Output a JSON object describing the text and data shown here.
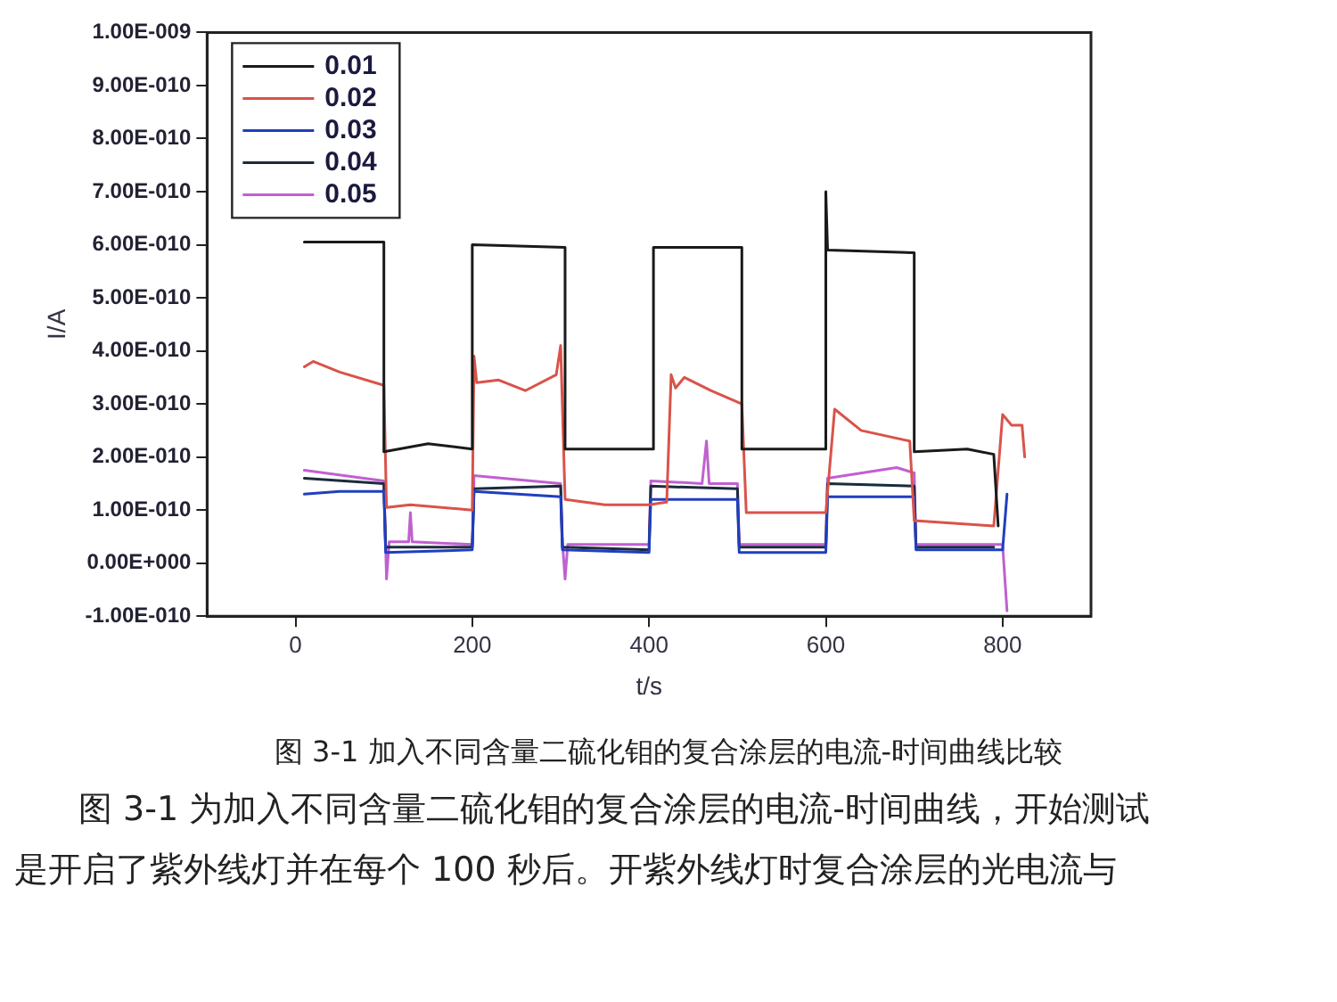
{
  "chart_data": {
    "type": "line",
    "xlabel": "t/s",
    "ylabel": "I/A",
    "xlim": [
      -100,
      900
    ],
    "xticks": [
      0,
      200,
      400,
      600,
      800
    ],
    "ylim": [
      -1e-10,
      1e-09
    ],
    "yticks": [
      {
        "value": -1e-10,
        "label": "-1.00E-010"
      },
      {
        "value": 0,
        "label": "0.00E+000"
      },
      {
        "value": 1e-10,
        "label": "1.00E-010"
      },
      {
        "value": 2e-10,
        "label": "2.00E-010"
      },
      {
        "value": 3e-10,
        "label": "3.00E-010"
      },
      {
        "value": 4e-10,
        "label": "4.00E-010"
      },
      {
        "value": 5e-10,
        "label": "5.00E-010"
      },
      {
        "value": 6e-10,
        "label": "6.00E-010"
      },
      {
        "value": 7e-10,
        "label": "7.00E-010"
      },
      {
        "value": 8e-10,
        "label": "8.00E-010"
      },
      {
        "value": 9e-10,
        "label": "9.00E-010"
      },
      {
        "value": 1e-09,
        "label": "1.00E-009"
      }
    ],
    "grid": false,
    "legend": "top left",
    "marker": "none",
    "line_style": "solid",
    "series": [
      {
        "name": "0.01",
        "color": "#1a1a1a",
        "x": [
          10,
          100,
          100,
          150,
          200,
          200,
          305,
          305,
          405,
          405,
          505,
          505,
          600,
          600,
          602,
          700,
          700,
          760,
          790,
          795
        ],
        "values": [
          6.05e-10,
          6.05e-10,
          2.1e-10,
          2.25e-10,
          2.15e-10,
          6e-10,
          5.95e-10,
          2.15e-10,
          2.15e-10,
          5.95e-10,
          5.95e-10,
          2.15e-10,
          2.15e-10,
          7e-10,
          5.9e-10,
          5.85e-10,
          2.1e-10,
          2.15e-10,
          2.05e-10,
          7e-11
        ]
      },
      {
        "name": "0.02",
        "color": "#d9534a",
        "x": [
          10,
          20,
          50,
          100,
          103,
          130,
          200,
          202,
          205,
          230,
          260,
          295,
          300,
          305,
          350,
          400,
          420,
          425,
          430,
          440,
          470,
          505,
          510,
          550,
          600,
          610,
          640,
          695,
          700,
          790,
          800,
          810,
          822,
          825
        ],
        "values": [
          3.7e-10,
          3.8e-10,
          3.6e-10,
          3.35e-10,
          1.05e-10,
          1.1e-10,
          1e-10,
          3.9e-10,
          3.4e-10,
          3.45e-10,
          3.25e-10,
          3.55e-10,
          4.1e-10,
          1.2e-10,
          1.1e-10,
          1.1e-10,
          1.15e-10,
          3.55e-10,
          3.3e-10,
          3.5e-10,
          3.25e-10,
          3e-10,
          9.5e-11,
          9.5e-11,
          9.5e-11,
          2.9e-10,
          2.5e-10,
          2.3e-10,
          8e-11,
          7e-11,
          2.8e-10,
          2.6e-10,
          2.6e-10,
          2e-10
        ]
      },
      {
        "name": "0.03",
        "color": "#1f3fbf",
        "x": [
          10,
          50,
          100,
          102,
          200,
          202,
          300,
          302,
          400,
          402,
          500,
          502,
          600,
          602,
          700,
          702,
          800,
          805
        ],
        "values": [
          1.3e-10,
          1.35e-10,
          1.35e-10,
          2e-11,
          2.5e-11,
          1.35e-10,
          1.25e-10,
          2.5e-11,
          2e-11,
          1.2e-10,
          1.2e-10,
          2e-11,
          2e-11,
          1.25e-10,
          1.25e-10,
          2.5e-11,
          2.5e-11,
          1.3e-10
        ]
      },
      {
        "name": "0.04",
        "color": "#1c2b3c",
        "x": [
          10,
          100,
          102,
          200,
          202,
          300,
          302,
          400,
          402,
          500,
          502,
          600,
          602,
          700,
          702,
          790
        ],
        "values": [
          1.6e-10,
          1.5e-10,
          3e-11,
          3e-11,
          1.4e-10,
          1.45e-10,
          3e-11,
          2.5e-11,
          1.45e-10,
          1.4e-10,
          3e-11,
          3e-11,
          1.5e-10,
          1.45e-10,
          3e-11,
          3e-11
        ]
      },
      {
        "name": "0.05",
        "color": "#c060d0",
        "x": [
          10,
          100,
          103,
          106,
          128,
          130,
          132,
          200,
          202,
          300,
          302,
          305,
          308,
          400,
          402,
          460,
          465,
          468,
          500,
          502,
          600,
          602,
          680,
          700,
          702,
          800,
          805
        ],
        "values": [
          1.75e-10,
          1.55e-10,
          -3e-11,
          4e-11,
          4e-11,
          9.5e-11,
          4e-11,
          3.5e-11,
          1.65e-10,
          1.5e-10,
          4e-11,
          -3e-11,
          3.5e-11,
          3.5e-11,
          1.55e-10,
          1.5e-10,
          2.3e-10,
          1.5e-10,
          1.5e-10,
          3.5e-11,
          3.5e-11,
          1.6e-10,
          1.8e-10,
          1.7e-10,
          3.5e-11,
          3.5e-11,
          -9e-11
        ]
      }
    ],
    "annotations": [
      "图 3-1  加入不同含量二硫化钼的复合涂层的电流-时间曲线比较",
      "图 3-1 为加入不同含量二硫化钼的复合涂层的电流-时间曲线，开始测试",
      "是开启了紫外线灯并在每个 100 秒后。开紫外线灯时复合涂层的光电流与"
    ]
  }
}
